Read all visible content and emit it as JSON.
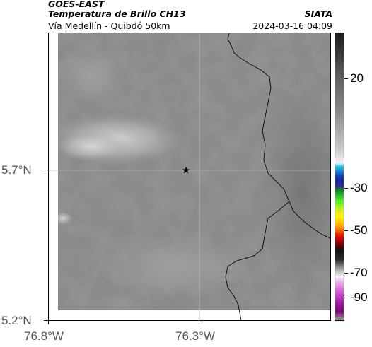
{
  "header": {
    "satellite": "GOES-EAST",
    "product": "Temperatura de Brillo CH13",
    "route": "Vía Medellín - Quibdó 50km",
    "agency": "SIATA",
    "datetime": "2024-03-16 04:09"
  },
  "axes": {
    "lat_labels": [
      "5.7°N",
      "5.2°N"
    ],
    "lon_labels": [
      "76.8°W",
      "76.3°W"
    ]
  },
  "colorbar": {
    "labels": [
      "20",
      "-30",
      "-50",
      "-70",
      "-90"
    ]
  },
  "marker": {
    "icon": "star-icon"
  },
  "colors": {
    "coastline": "#111111",
    "gridline": "#b8b8b8"
  }
}
